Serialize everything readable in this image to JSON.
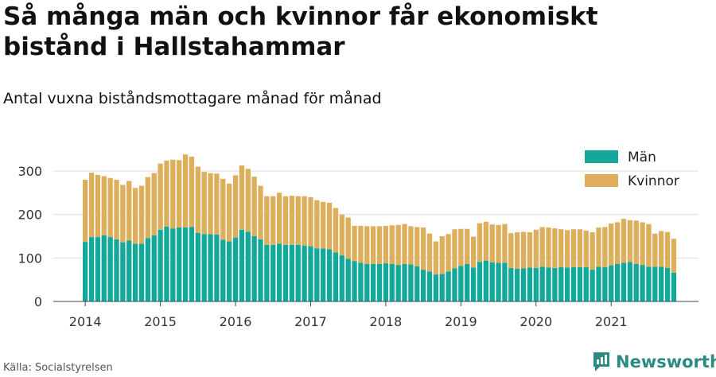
{
  "header": {
    "title": "Så många män och kvinnor får ekonomiskt bistånd i Hallstahammar",
    "subtitle": "Antal vuxna biståndsmottagare månad för månad"
  },
  "footer": {
    "source": "Källa: Socialstyrelsen",
    "brand": "Newsworthy"
  },
  "colors": {
    "men": "#12a89b",
    "women": "#ddae5b",
    "grid": "#dddddd",
    "brand": "#2b8a82"
  },
  "chart_data": {
    "type": "bar",
    "stacked": true,
    "x_start": "2014-01",
    "x_end": "2021-11",
    "ylim": [
      0,
      320
    ],
    "yticks": [
      0,
      100,
      200,
      300
    ],
    "xticks": [
      "2014",
      "2015",
      "2016",
      "2017",
      "2018",
      "2019",
      "2020",
      "2021"
    ],
    "grid": true,
    "legend_position": "top-right",
    "series": [
      {
        "name": "Män",
        "values": [
          137,
          148,
          148,
          152,
          148,
          143,
          136,
          140,
          133,
          133,
          146,
          152,
          165,
          172,
          168,
          170,
          170,
          171,
          158,
          155,
          155,
          154,
          142,
          138,
          147,
          165,
          160,
          150,
          143,
          130,
          130,
          133,
          130,
          130,
          130,
          128,
          127,
          122,
          122,
          120,
          113,
          106,
          98,
          93,
          89,
          86,
          86,
          86,
          88,
          86,
          84,
          86,
          85,
          81,
          73,
          69,
          62,
          63,
          69,
          76,
          82,
          86,
          78,
          91,
          94,
          90,
          89,
          89,
          77,
          75,
          76,
          78,
          77,
          80,
          78,
          77,
          79,
          78,
          79,
          79,
          79,
          73,
          80,
          79,
          83,
          86,
          89,
          91,
          86,
          84,
          80,
          80,
          80,
          77,
          66
        ]
      },
      {
        "name": "Kvinnor",
        "values": [
          143,
          148,
          143,
          136,
          136,
          137,
          132,
          137,
          128,
          133,
          140,
          143,
          152,
          152,
          158,
          155,
          168,
          162,
          152,
          143,
          140,
          140,
          140,
          133,
          143,
          148,
          145,
          137,
          123,
          112,
          112,
          117,
          112,
          113,
          112,
          114,
          113,
          111,
          107,
          107,
          102,
          94,
          95,
          81,
          85,
          87,
          87,
          87,
          86,
          89,
          92,
          92,
          88,
          90,
          97,
          87,
          76,
          87,
          86,
          90,
          85,
          81,
          71,
          89,
          89,
          87,
          87,
          89,
          80,
          84,
          84,
          81,
          88,
          91,
          92,
          91,
          87,
          86,
          87,
          87,
          84,
          86,
          90,
          92,
          96,
          96,
          101,
          96,
          100,
          98,
          98,
          76,
          82,
          83,
          78
        ]
      }
    ]
  }
}
